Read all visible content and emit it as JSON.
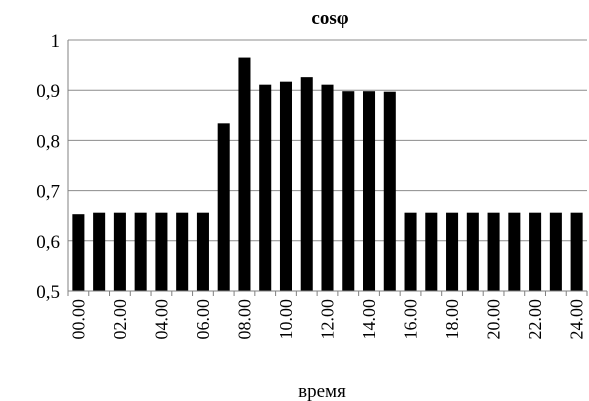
{
  "chart_data": {
    "type": "bar",
    "title": "cosφ",
    "xlabel": "время",
    "ylabel": "",
    "ylim": [
      0.5,
      1
    ],
    "yticks": [
      "0,5",
      "0,6",
      "0,7",
      "0,8",
      "0,9",
      "1"
    ],
    "categories": [
      "00.00",
      "01.00",
      "02.00",
      "03.00",
      "04.00",
      "05.00",
      "06.00",
      "07.00",
      "08.00",
      "09.00",
      "10.00",
      "11.00",
      "12.00",
      "13.00",
      "14.00",
      "15.00",
      "16.00",
      "17.00",
      "18.00",
      "19.00",
      "20.00",
      "21.00",
      "22.00",
      "23.00",
      "24.00"
    ],
    "x_tick_labels": [
      "00.00",
      "02.00",
      "04.00",
      "06.00",
      "08.00",
      "10.00",
      "12.00",
      "14.00",
      "16.00",
      "18.00",
      "20.00",
      "22.00",
      "24.00"
    ],
    "values": [
      0.653,
      0.656,
      0.656,
      0.656,
      0.656,
      0.656,
      0.656,
      0.834,
      0.965,
      0.911,
      0.917,
      0.926,
      0.911,
      0.898,
      0.898,
      0.897,
      0.656,
      0.656,
      0.656,
      0.656,
      0.656,
      0.656,
      0.656,
      0.656,
      0.656
    ],
    "bar_color": "#000000",
    "grid": true,
    "legend": "none"
  }
}
